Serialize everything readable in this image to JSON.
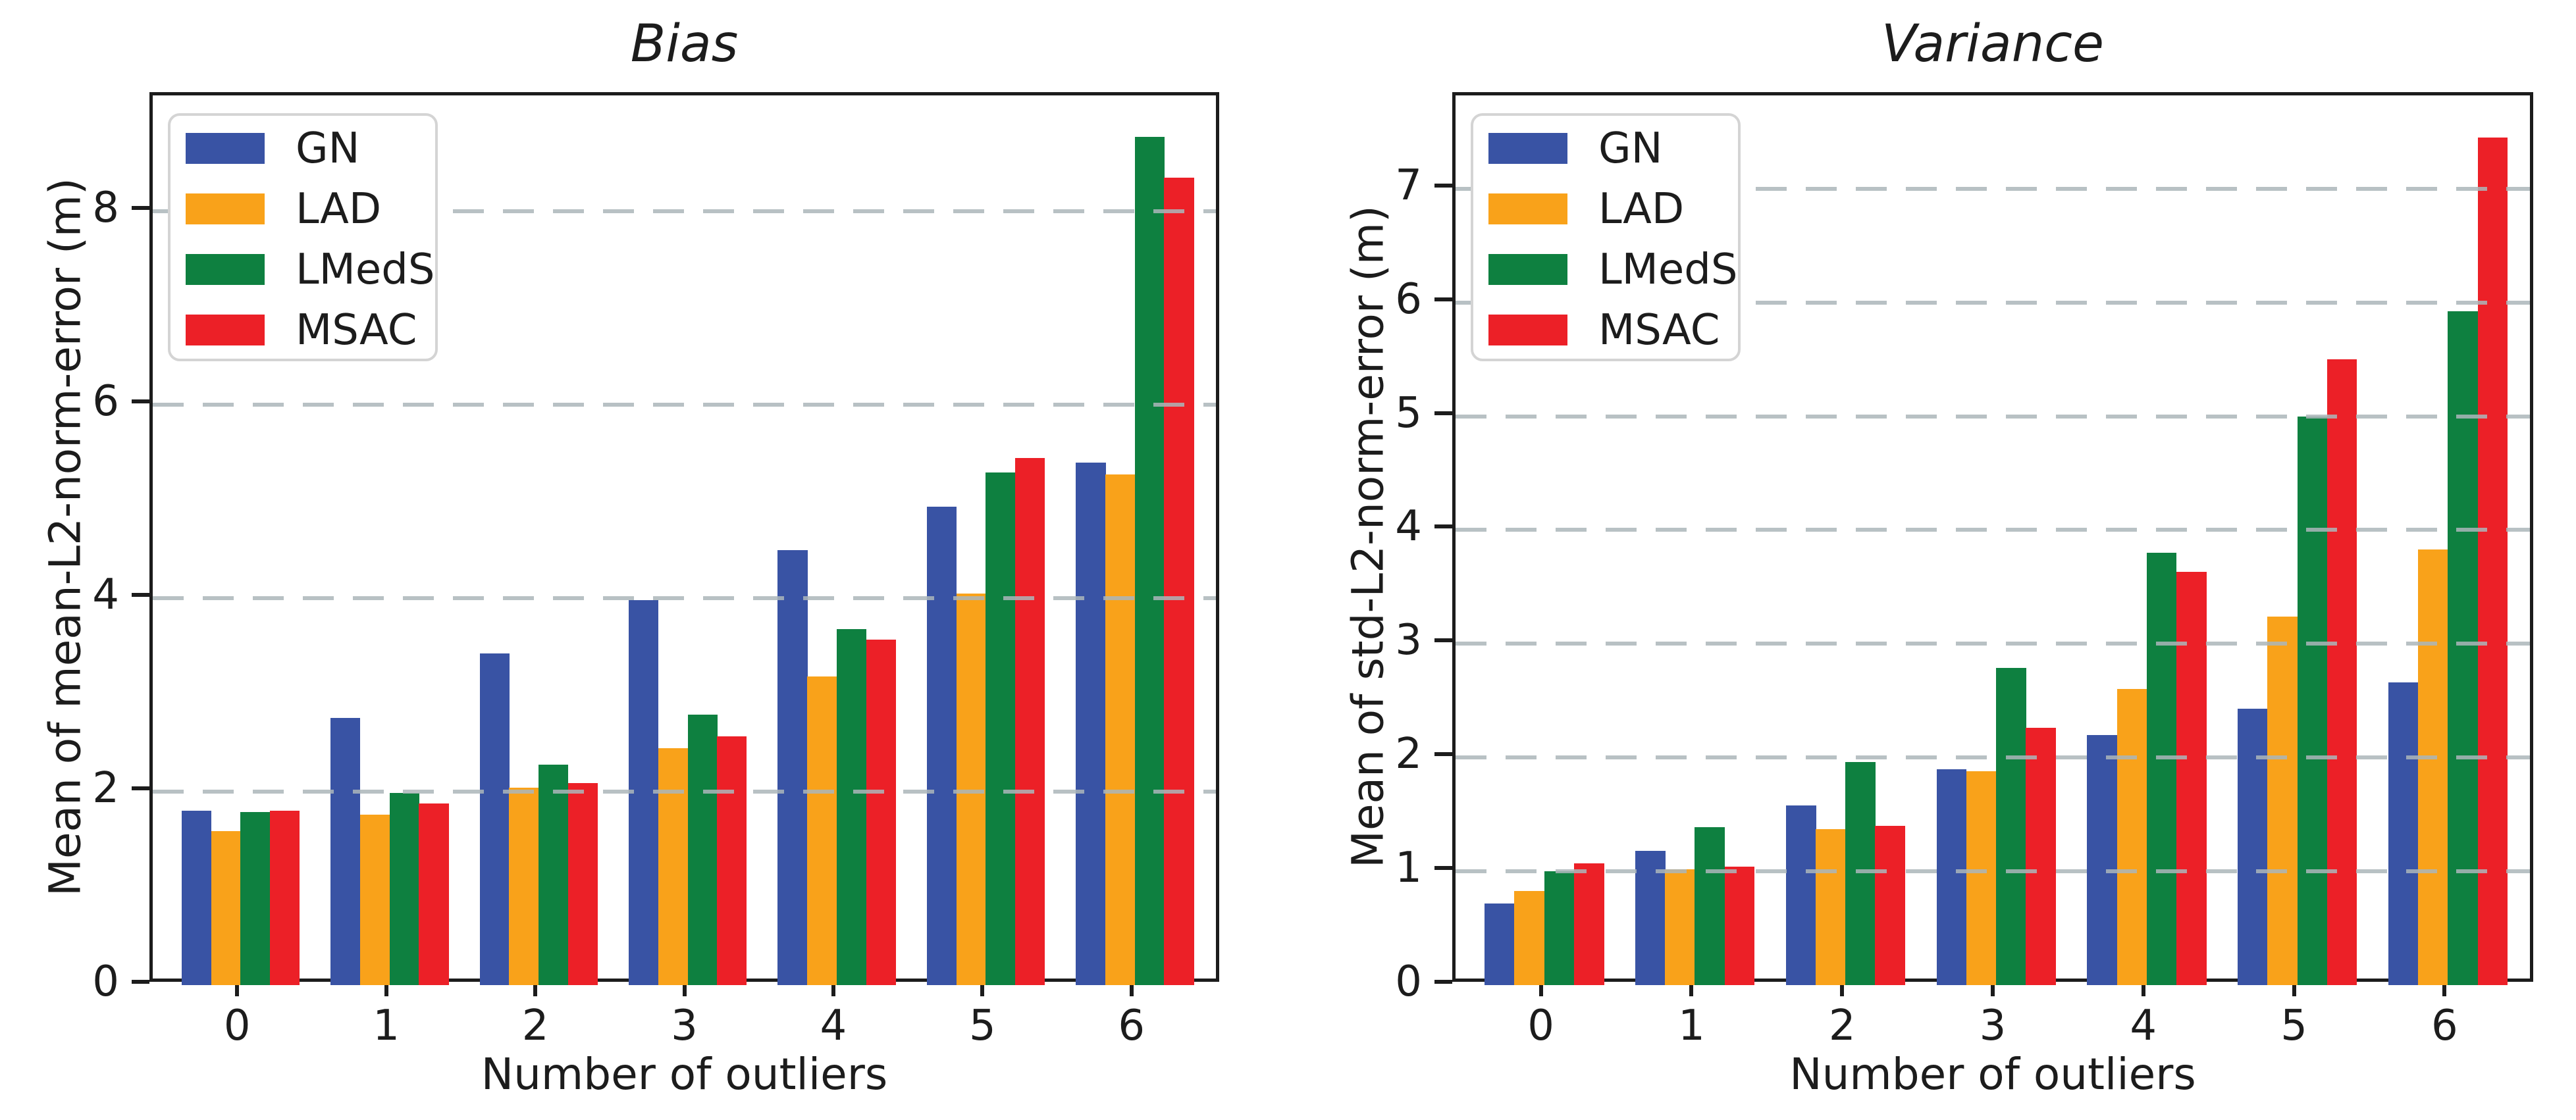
{
  "figure": {
    "background": "#ffffff",
    "text_color": "#1c1c1c",
    "spine_color": "#1c1c1c",
    "grid_color": "#abb6ba",
    "grid_style": "dashed horizontal"
  },
  "legend": {
    "entries": [
      {
        "label": "GN",
        "color": "#3953a4"
      },
      {
        "label": "LAD",
        "color": "#f9a21a"
      },
      {
        "label": "LMedS",
        "color": "#0e8040"
      },
      {
        "label": "MSAC",
        "color": "#ec2027"
      }
    ],
    "position": "upper left"
  },
  "chart_data": [
    {
      "type": "bar",
      "title": "Bias",
      "xlabel": "Number of outliers",
      "ylabel": "Mean of mean-L2-norm-error (m)",
      "categories": [
        "0",
        "1",
        "2",
        "3",
        "4",
        "5",
        "6"
      ],
      "series": [
        {
          "name": "GN",
          "color": "#3953a4",
          "values": [
            1.8,
            2.76,
            3.43,
            3.98,
            4.5,
            4.95,
            5.4
          ]
        },
        {
          "name": "LAD",
          "color": "#f9a21a",
          "values": [
            1.59,
            1.76,
            2.04,
            2.45,
            3.19,
            4.05,
            5.28
          ]
        },
        {
          "name": "LMedS",
          "color": "#0e8040",
          "values": [
            1.79,
            1.99,
            2.28,
            2.8,
            3.68,
            5.3,
            8.77
          ]
        },
        {
          "name": "MSAC",
          "color": "#ec2027",
          "values": [
            1.8,
            1.88,
            2.09,
            2.57,
            3.57,
            5.45,
            8.35
          ]
        }
      ],
      "yticks": [
        0,
        2,
        4,
        6,
        8
      ],
      "ytick_labels": [
        "0",
        "2",
        "4",
        "6",
        "8"
      ],
      "ylim": [
        0,
        9.2
      ],
      "grid": true,
      "legend_position": "upper left"
    },
    {
      "type": "bar",
      "title": "Variance",
      "xlabel": "Number of outliers",
      "ylabel": "Mean of std-L2-norm-error (m)",
      "categories": [
        "0",
        "1",
        "2",
        "3",
        "4",
        "5",
        "6"
      ],
      "series": [
        {
          "name": "GN",
          "color": "#3953a4",
          "values": [
            0.72,
            1.18,
            1.58,
            1.9,
            2.2,
            2.43,
            2.66
          ]
        },
        {
          "name": "LAD",
          "color": "#f9a21a",
          "values": [
            0.83,
            1.02,
            1.37,
            1.88,
            2.6,
            3.24,
            3.83
          ]
        },
        {
          "name": "LMedS",
          "color": "#0e8040",
          "values": [
            1.0,
            1.39,
            1.96,
            2.79,
            3.8,
            5.0,
            5.92
          ]
        },
        {
          "name": "MSAC",
          "color": "#ec2027",
          "values": [
            1.07,
            1.04,
            1.4,
            2.26,
            3.63,
            5.5,
            7.45
          ]
        }
      ],
      "yticks": [
        0,
        1,
        2,
        3,
        4,
        5,
        6,
        7
      ],
      "ytick_labels": [
        "0",
        "1",
        "2",
        "3",
        "4",
        "5",
        "6",
        "7"
      ],
      "ylim": [
        0,
        7.82
      ],
      "grid": true,
      "legend_position": "upper left"
    }
  ]
}
